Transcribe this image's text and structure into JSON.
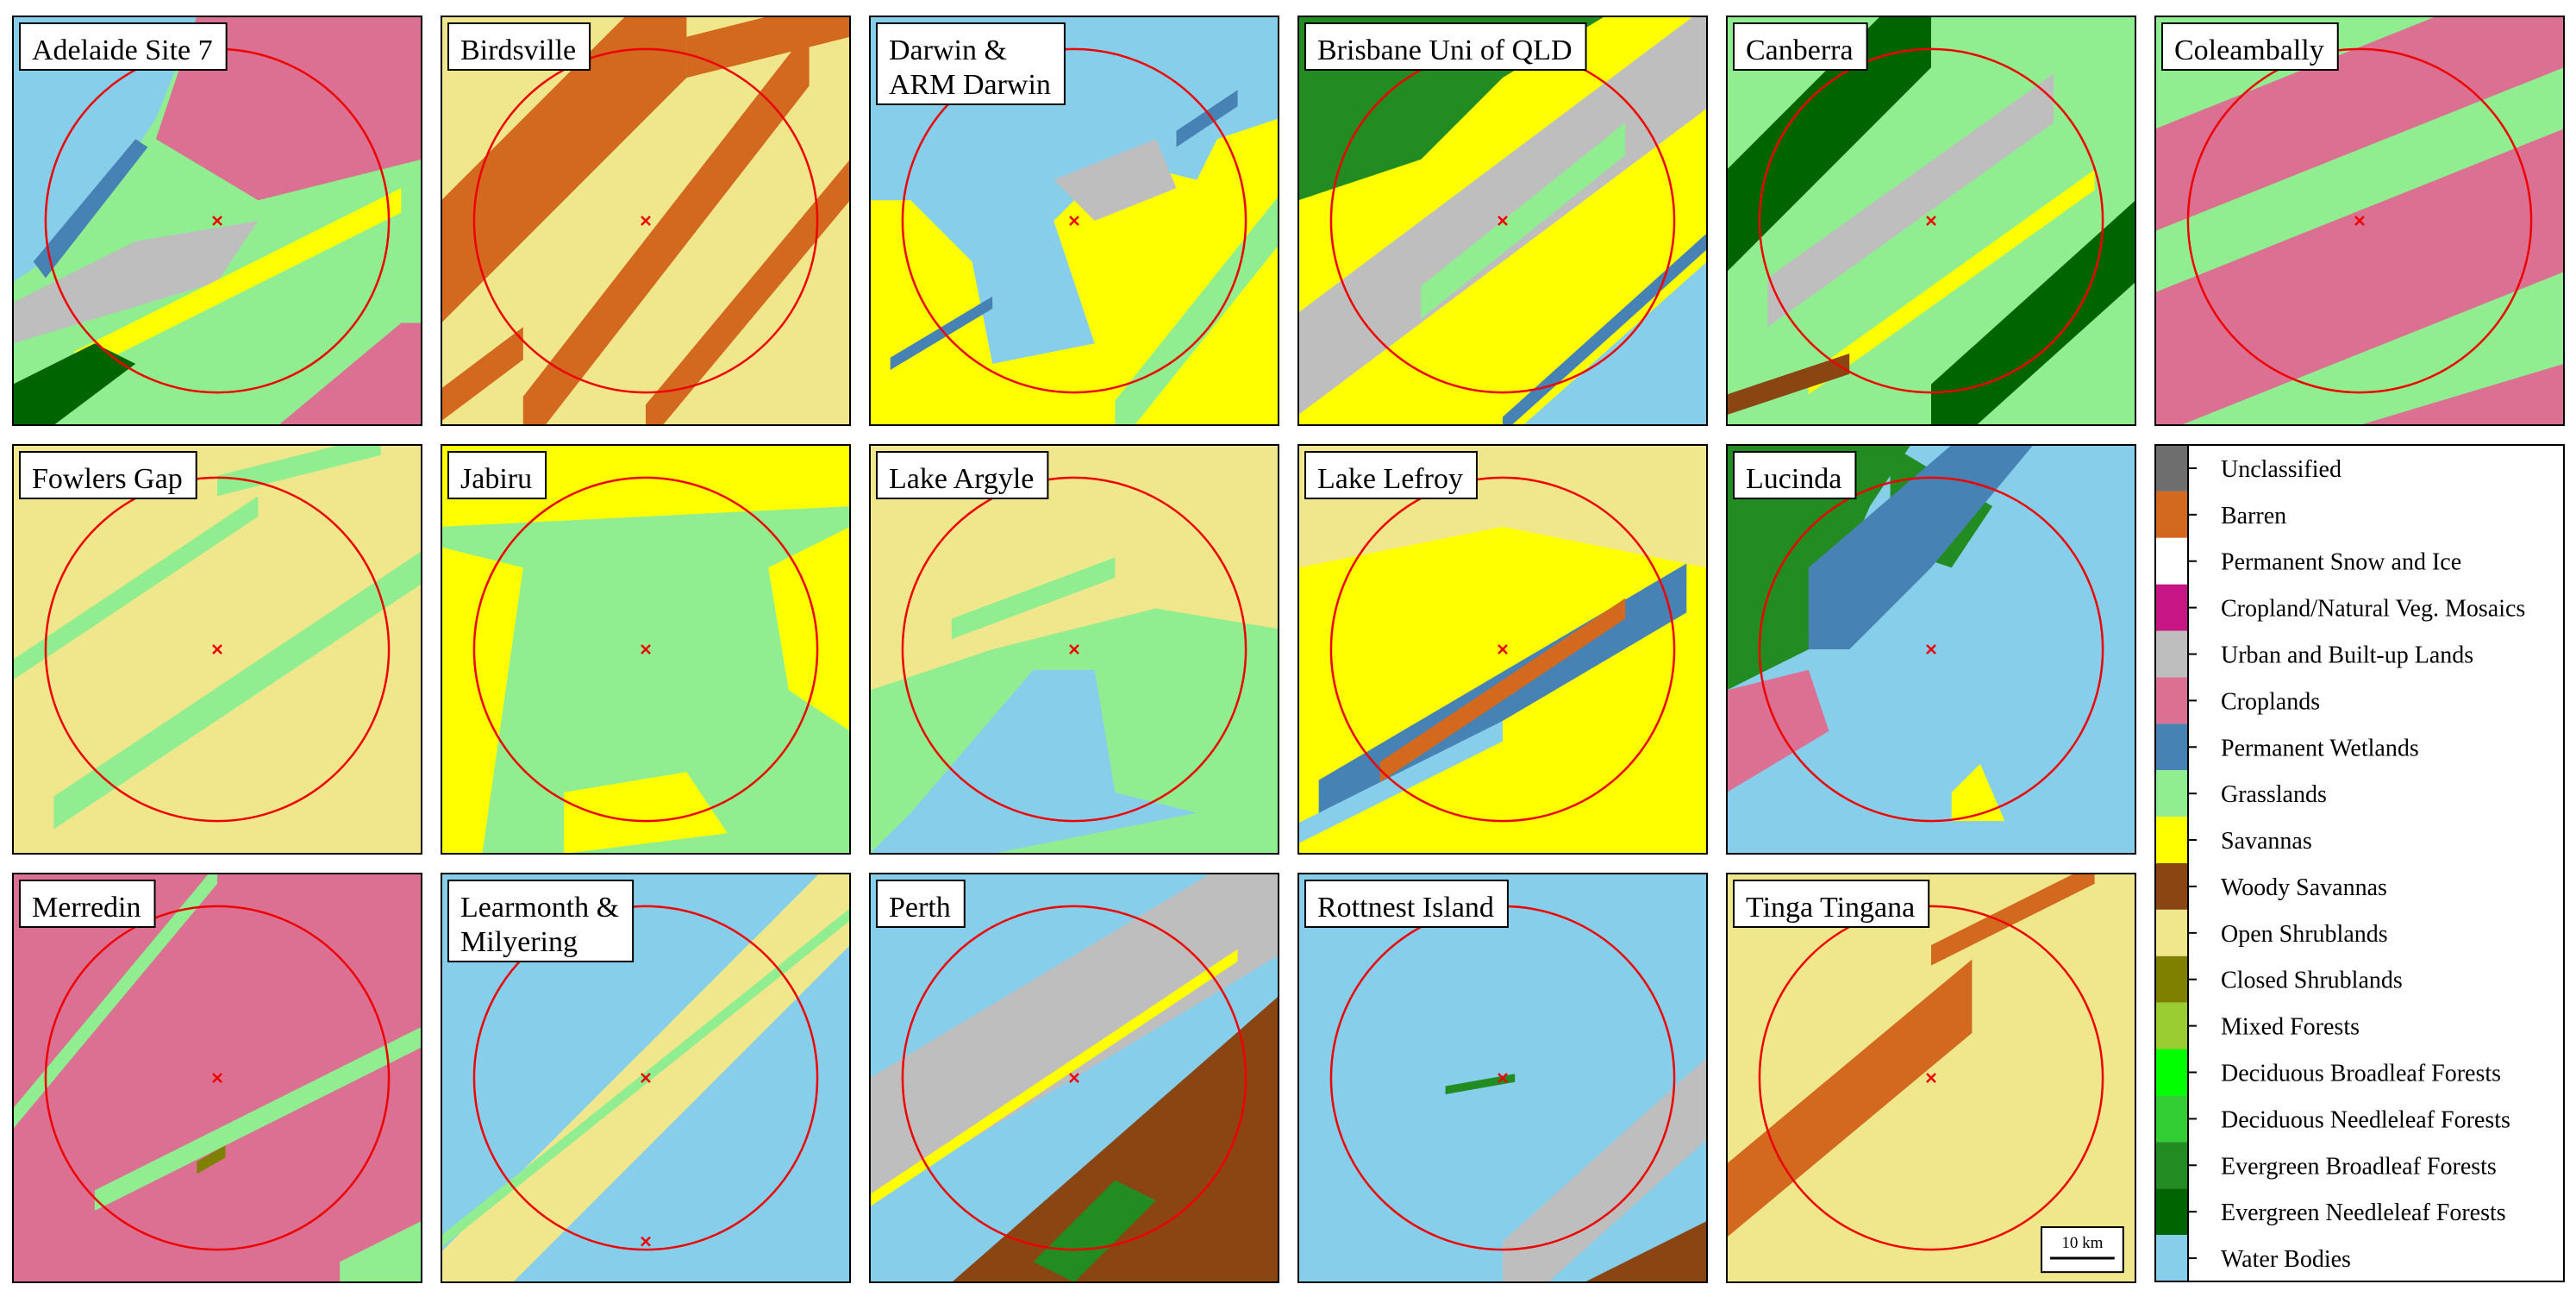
{
  "panels": [
    {
      "title": [
        "Adelaide Site 7"
      ]
    },
    {
      "title": [
        "Birdsville"
      ]
    },
    {
      "title": [
        "Darwin &",
        "ARM Darwin"
      ]
    },
    {
      "title": [
        "Brisbane Uni of QLD"
      ]
    },
    {
      "title": [
        "Canberra"
      ]
    },
    {
      "title": [
        "Coleambally"
      ]
    },
    {
      "title": [
        "Fowlers Gap"
      ]
    },
    {
      "title": [
        "Jabiru"
      ]
    },
    {
      "title": [
        "Lake Argyle"
      ]
    },
    {
      "title": [
        "Lake Lefroy"
      ]
    },
    {
      "title": [
        "Lucinda"
      ]
    },
    {
      "title": [
        "Merredin"
      ]
    },
    {
      "title": [
        "Learmonth &",
        "Milyering"
      ]
    },
    {
      "title": [
        "Perth"
      ]
    },
    {
      "title": [
        "Rottnest Island"
      ]
    },
    {
      "title": [
        "Tinga Tingana"
      ]
    }
  ],
  "legend": [
    {
      "label": "Unclassified",
      "color": "#6e6e6e"
    },
    {
      "label": "Barren",
      "color": "#d2691e"
    },
    {
      "label": "Permanent Snow and Ice",
      "color": "#ffffff"
    },
    {
      "label": "Cropland/Natural Veg. Mosaics",
      "color": "#c71585"
    },
    {
      "label": "Urban and Built-up Lands",
      "color": "#bebebe"
    },
    {
      "label": "Croplands",
      "color": "#db7093"
    },
    {
      "label": "Permanent Wetlands",
      "color": "#4682b4"
    },
    {
      "label": "Grasslands",
      "color": "#90ee90"
    },
    {
      "label": "Savannas",
      "color": "#ffff00"
    },
    {
      "label": "Woody Savannas",
      "color": "#8b4513"
    },
    {
      "label": "Open Shrublands",
      "color": "#f0e68c"
    },
    {
      "label": "Closed Shrublands",
      "color": "#808000"
    },
    {
      "label": "Mixed Forests",
      "color": "#9acd32"
    },
    {
      "label": "Deciduous Broadleaf Forests",
      "color": "#00ff00"
    },
    {
      "label": "Deciduous Needleleaf Forests",
      "color": "#32cd32"
    },
    {
      "label": "Evergreen Broadleaf Forests",
      "color": "#228b22"
    },
    {
      "label": "Evergreen Needleleaf Forests",
      "color": "#006400"
    },
    {
      "label": "Water Bodies",
      "color": "#87ceeb"
    }
  ],
  "scale_bar": {
    "label": "10 km"
  }
}
